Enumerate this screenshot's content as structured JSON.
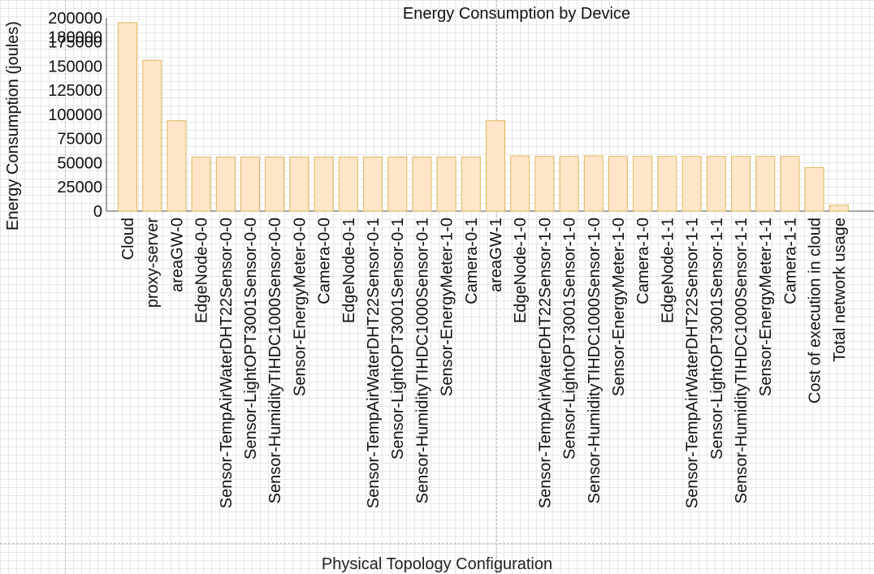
{
  "page": {
    "footer_label": "Physical Topology Configuration"
  },
  "colors": {
    "bar_fill": "#ffe6c8",
    "bar_stroke": "#e0b65c",
    "axis": "#555555",
    "text": "#111111"
  },
  "chart_data": {
    "type": "bar",
    "title": "Energy Consumption by Device",
    "xlabel": "",
    "ylabel": "Energy Consumption (joules)",
    "ylim": [
      0,
      210000
    ],
    "yticks": [
      0,
      25000,
      50000,
      75000,
      100000,
      125000,
      150000,
      175000,
      180000,
      200000
    ],
    "grid": true,
    "categories": [
      "Cloud",
      "proxy-server",
      "areaGW-0",
      "EdgeNode-0-0",
      "Sensor-TempAirWaterDHT22Sensor-0-0",
      "Sensor-LightOPT3001Sensor-0-0",
      "Sensor-HumidityTIHDC1000Sensor-0-0",
      "Sensor-EnergyMeter-0-0",
      "Camera-0-0",
      "EdgeNode-0-1",
      "Sensor-TempAirWaterDHT22Sensor-0-1",
      "Sensor-LightOPT3001Sensor-0-1",
      "Sensor-HumidityTIHDC1000Sensor-0-1",
      "Sensor-EnergyMeter-1-0",
      "Camera-0-1",
      "areaGW-1",
      "EdgeNode-1-0",
      "Sensor-TempAirWaterDHT22Sensor-1-0",
      "Sensor-LightOPT3001Sensor-1-0",
      "Sensor-HumidityTIHDC1000Sensor-1-0",
      "Sensor-EnergyMeter-1-0",
      "Camera-1-0",
      "EdgeNode-1-1",
      "Sensor-TempAirWaterDHT22Sensor-1-1",
      "Sensor-LightOPT3001Sensor-1-1",
      "Sensor-HumidityTIHDC1000Sensor-1-1",
      "Sensor-EnergyMeter-1-1",
      "Camera-1-1",
      "Cost of execution in cloud",
      "Total network usage"
    ],
    "values": [
      195000,
      156000,
      93500,
      56000,
      56000,
      56000,
      56000,
      56000,
      56000,
      56000,
      56000,
      56000,
      56000,
      56000,
      56000,
      93500,
      57000,
      56500,
      56500,
      57000,
      56500,
      56500,
      56500,
      56500,
      56500,
      56500,
      56500,
      56500,
      45000,
      6000
    ]
  }
}
